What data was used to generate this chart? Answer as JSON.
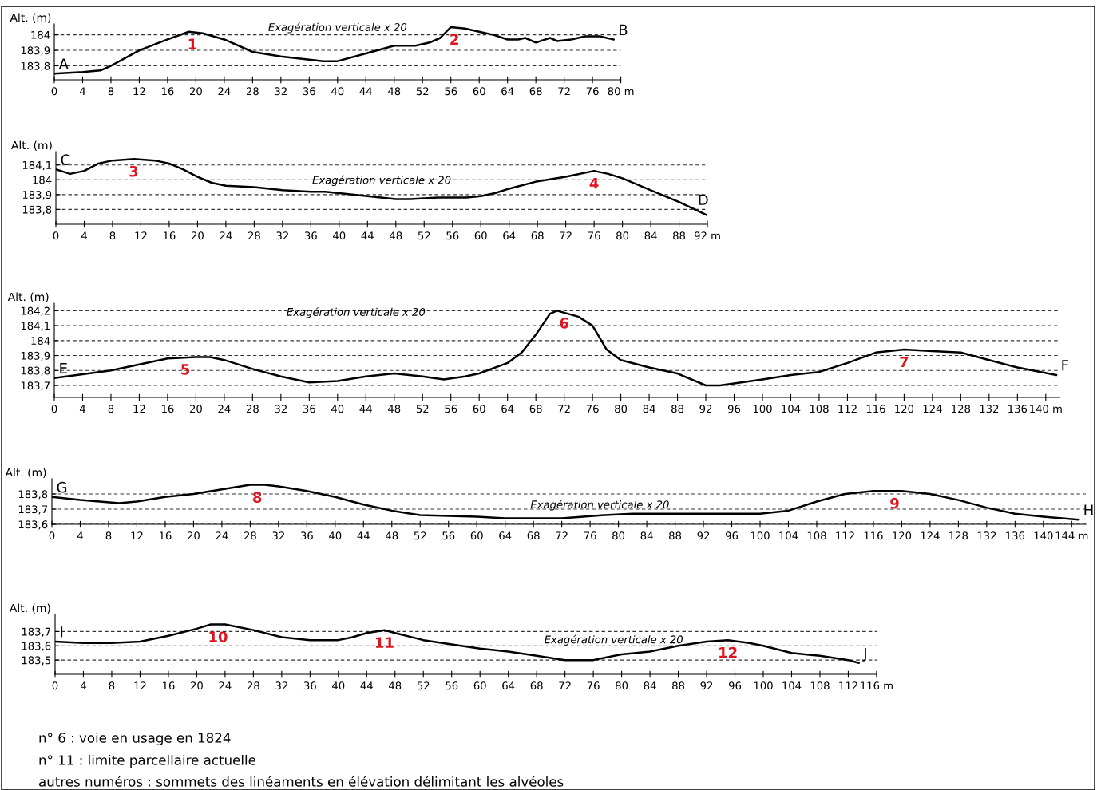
{
  "chart_data": [
    {
      "type": "line",
      "ylabel": "Alt. (m)",
      "grid": "y",
      "xlim": [
        0,
        80
      ],
      "ylim": [
        183.71,
        184.07
      ],
      "xticks": [
        0,
        4,
        8,
        12,
        16,
        20,
        24,
        28,
        32,
        36,
        40,
        44,
        48,
        52,
        56,
        60,
        64,
        68,
        72,
        76,
        {
          "value": 80,
          "label": "80 m"
        }
      ],
      "yticks": [
        {
          "value": 183.8,
          "label": "183,8"
        },
        {
          "value": 183.9,
          "label": "183,9"
        },
        184
      ],
      "series": [
        {
          "color": "#000000",
          "x": [
            0,
            4,
            6.5,
            8,
            12,
            16,
            19,
            21,
            24,
            28,
            32,
            36,
            38,
            40,
            44,
            48,
            51,
            53,
            54.5,
            56,
            58,
            60,
            62,
            64,
            65.5,
            66.5,
            68,
            70,
            71,
            73,
            75,
            77,
            79
          ],
          "values": [
            183.75,
            183.76,
            183.77,
            183.8,
            183.9,
            183.97,
            184.02,
            184.01,
            183.97,
            183.89,
            183.86,
            183.84,
            183.83,
            183.83,
            183.88,
            183.93,
            183.93,
            183.95,
            183.98,
            184.05,
            184.04,
            184.02,
            184.0,
            183.97,
            183.97,
            183.98,
            183.95,
            183.98,
            183.96,
            183.97,
            183.99,
            183.99,
            183.97
          ]
        }
      ],
      "annotations": [
        {
          "text": "A",
          "x": 0,
          "y": 183.75
        },
        {
          "text": "B",
          "x": 79,
          "y": 183.97
        },
        "Exagération verticale x 20",
        {
          "text": "1",
          "x": 19.5,
          "y": 184.02
        },
        {
          "text": "2",
          "x": 56.5,
          "y": 184.05
        }
      ]
    },
    {
      "type": "line",
      "ylabel": "Alt. (m)",
      "grid": "y",
      "xlim": [
        0,
        92
      ],
      "ylim": [
        183.7,
        184.19
      ],
      "xticks": [
        0,
        4,
        8,
        12,
        16,
        20,
        24,
        28,
        32,
        36,
        40,
        44,
        48,
        52,
        56,
        60,
        64,
        68,
        72,
        76,
        80,
        84,
        88,
        {
          "value": 92,
          "label": "92 m"
        }
      ],
      "yticks": [
        {
          "value": 183.8,
          "label": "183,8"
        },
        {
          "value": 183.9,
          "label": "183,9"
        },
        184,
        {
          "value": 184.1,
          "label": "184,1"
        }
      ],
      "series": [
        {
          "color": "#000000",
          "x": [
            0,
            2,
            4,
            6,
            8,
            11,
            14,
            16,
            18,
            20,
            22,
            24,
            28,
            32,
            36,
            38,
            40,
            44,
            48,
            50,
            54,
            58,
            60,
            62,
            64,
            68,
            72,
            76,
            78,
            80,
            82,
            84,
            88,
            92
          ],
          "values": [
            184.07,
            184.04,
            184.06,
            184.11,
            184.13,
            184.14,
            184.13,
            184.11,
            184.07,
            184.02,
            183.98,
            183.96,
            183.95,
            183.93,
            183.92,
            183.92,
            183.91,
            183.89,
            183.87,
            183.87,
            183.88,
            183.88,
            183.89,
            183.91,
            183.94,
            183.99,
            184.02,
            184.06,
            184.04,
            184.01,
            183.97,
            183.93,
            183.85,
            183.76
          ]
        }
      ],
      "annotations": [
        {
          "text": "C",
          "x": 0,
          "y": 184.07
        },
        {
          "text": "D",
          "x": 90,
          "y": 183.8
        },
        "Exagération verticale x 20",
        {
          "text": "3",
          "x": 11,
          "y": 184.14
        },
        {
          "text": "4",
          "x": 76,
          "y": 184.06
        }
      ]
    },
    {
      "type": "line",
      "ylabel": "Alt. (m)",
      "grid": "y",
      "xlim": [
        0,
        142
      ],
      "ylim": [
        183.62,
        184.25
      ],
      "xticks": [
        0,
        4,
        8,
        12,
        16,
        20,
        24,
        28,
        32,
        36,
        40,
        44,
        48,
        52,
        56,
        60,
        64,
        68,
        72,
        76,
        80,
        84,
        88,
        92,
        96,
        100,
        104,
        108,
        112,
        116,
        120,
        124,
        128,
        132,
        136,
        {
          "value": 140,
          "label": "140 m"
        }
      ],
      "yticks": [
        {
          "value": 183.7,
          "label": "183,7"
        },
        {
          "value": 183.8,
          "label": "183,8"
        },
        {
          "value": 183.9,
          "label": "183,9"
        },
        184,
        {
          "value": 184.1,
          "label": "184,1"
        },
        {
          "value": 184.2,
          "label": "184,2"
        }
      ],
      "series": [
        {
          "color": "#000000",
          "x": [
            0,
            8,
            12,
            16,
            20,
            22,
            24,
            28,
            32,
            36,
            40,
            44,
            48,
            52,
            55,
            58,
            60,
            64,
            66,
            68,
            70,
            71,
            74,
            76,
            78,
            80,
            84,
            88,
            92,
            94,
            100,
            104,
            108,
            112,
            116,
            120,
            124,
            128,
            132,
            136,
            141.5
          ],
          "values": [
            183.75,
            183.8,
            183.84,
            183.88,
            183.89,
            183.89,
            183.87,
            183.81,
            183.76,
            183.72,
            183.73,
            183.76,
            183.78,
            183.76,
            183.74,
            183.76,
            183.78,
            183.85,
            183.92,
            184.04,
            184.18,
            184.2,
            184.16,
            184.1,
            183.94,
            183.87,
            183.82,
            183.78,
            183.7,
            183.7,
            183.74,
            183.77,
            183.79,
            183.85,
            183.92,
            183.94,
            183.93,
            183.92,
            183.87,
            183.82,
            183.77
          ]
        }
      ],
      "annotations": [
        {
          "text": "E",
          "x": 0,
          "y": 183.75
        },
        {
          "text": "F",
          "x": 141.5,
          "y": 183.77
        },
        "Exagération verticale x 20",
        {
          "text": "5",
          "x": 18.5,
          "y": 183.89
        },
        {
          "text": "6",
          "x": 72,
          "y": 184.2
        },
        {
          "text": "7",
          "x": 120,
          "y": 183.94
        }
      ]
    },
    {
      "type": "line",
      "ylabel": "Alt. (m)",
      "grid": "y",
      "xlim": [
        0,
        146
      ],
      "ylim": [
        183.6,
        183.9
      ],
      "xticks": [
        0,
        4,
        8,
        12,
        16,
        20,
        24,
        28,
        32,
        36,
        40,
        44,
        48,
        52,
        56,
        60,
        64,
        68,
        72,
        76,
        80,
        84,
        88,
        92,
        96,
        100,
        104,
        108,
        112,
        116,
        120,
        124,
        128,
        132,
        136,
        140,
        {
          "value": 144,
          "label": "144 m"
        }
      ],
      "yticks": [
        {
          "value": 183.6,
          "label": "183,6"
        },
        {
          "value": 183.7,
          "label": "183,7"
        },
        {
          "value": 183.8,
          "label": "183,8"
        }
      ],
      "series": [
        {
          "color": "#000000",
          "x": [
            0,
            4,
            9.5,
            12,
            16,
            20,
            24,
            28,
            30,
            32,
            36,
            40,
            44,
            48,
            52,
            60,
            64,
            72,
            75,
            78,
            82,
            92,
            100,
            104,
            108,
            112,
            116,
            120,
            124,
            128,
            132,
            136,
            140,
            145
          ],
          "values": [
            183.78,
            183.76,
            183.74,
            183.75,
            183.78,
            183.8,
            183.83,
            183.86,
            183.86,
            183.85,
            183.82,
            183.78,
            183.73,
            183.69,
            183.66,
            183.65,
            183.64,
            183.64,
            183.65,
            183.66,
            183.67,
            183.67,
            183.67,
            183.69,
            183.75,
            183.8,
            183.82,
            183.82,
            183.8,
            183.76,
            183.71,
            183.67,
            183.65,
            183.63
          ]
        }
      ],
      "annotations": [
        {
          "text": "G",
          "x": 0,
          "y": 183.78
        },
        {
          "text": "H",
          "x": 145,
          "y": 183.63
        },
        "Exagération verticale x 20",
        {
          "text": "8",
          "x": 29,
          "y": 183.86
        },
        {
          "text": "9",
          "x": 119,
          "y": 183.82
        }
      ]
    },
    {
      "type": "line",
      "ylabel": "Alt. (m)",
      "grid": "y",
      "xlim": [
        0,
        116
      ],
      "ylim": [
        183.4,
        183.82
      ],
      "xticks": [
        0,
        4,
        8,
        12,
        16,
        20,
        24,
        28,
        32,
        36,
        40,
        44,
        48,
        52,
        56,
        60,
        64,
        68,
        72,
        76,
        80,
        84,
        88,
        92,
        96,
        100,
        104,
        108,
        112,
        {
          "value": 116,
          "label": "116 m"
        }
      ],
      "yticks": [
        {
          "value": 183.5,
          "label": "183,5"
        },
        {
          "value": 183.6,
          "label": "183,6"
        },
        {
          "value": 183.7,
          "label": "183,7"
        }
      ],
      "series": [
        {
          "color": "#000000",
          "x": [
            0,
            4,
            8,
            12,
            16,
            20,
            22,
            24,
            28,
            32,
            36,
            40,
            42,
            44,
            46.5,
            48,
            52,
            56,
            60,
            64,
            68,
            72,
            76,
            78,
            80,
            84,
            88,
            92,
            95,
            98,
            100,
            104,
            108,
            112,
            113.5
          ],
          "values": [
            183.63,
            183.62,
            183.62,
            183.63,
            183.67,
            183.72,
            183.75,
            183.75,
            183.71,
            183.66,
            183.64,
            183.64,
            183.66,
            183.69,
            183.71,
            183.69,
            183.64,
            183.61,
            183.58,
            183.56,
            183.53,
            183.5,
            183.5,
            183.52,
            183.54,
            183.56,
            183.6,
            183.63,
            183.64,
            183.62,
            183.6,
            183.55,
            183.53,
            183.5,
            183.48
          ]
        }
      ],
      "annotations": [
        {
          "text": "I",
          "x": 0,
          "y": 183.63
        },
        {
          "text": "J",
          "x": 113.5,
          "y": 183.48
        },
        "Exagération verticale x 20",
        {
          "text": "10",
          "x": 23,
          "y": 183.75
        },
        {
          "text": "11",
          "x": 46.5,
          "y": 183.71
        },
        {
          "text": "12",
          "x": 95,
          "y": 183.64
        }
      ]
    },
    {
      "type": "other",
      "annotations": [
        "n° 6 : voie en usage en 1824",
        "n° 11 : limite parcellaire actuelle",
        "autres numéros : sommets des linéaments en élévation délimitant les alvéoles"
      ]
    }
  ]
}
